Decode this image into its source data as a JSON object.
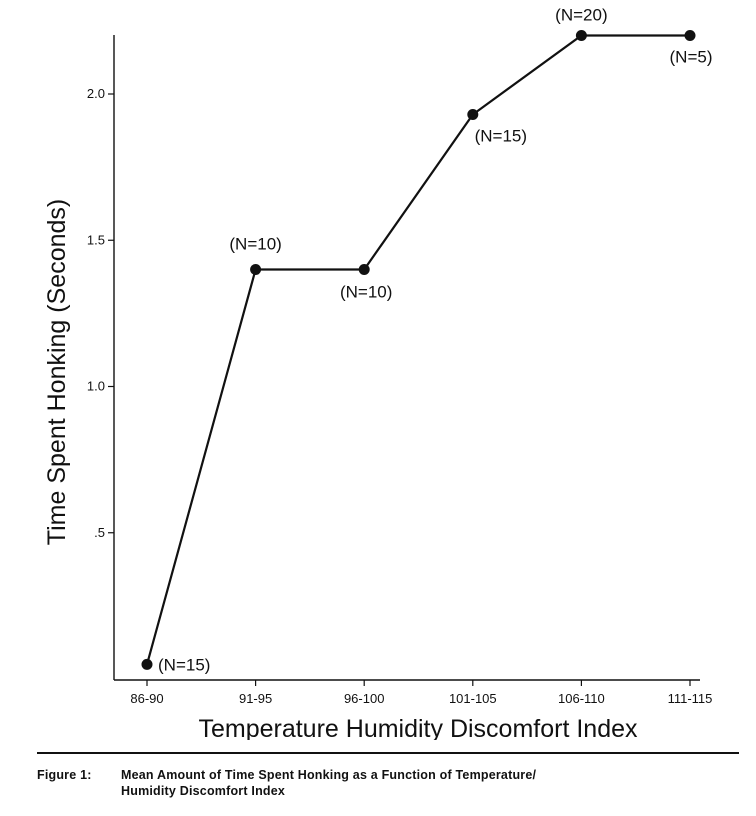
{
  "chart_data": {
    "type": "line",
    "categories": [
      "86-90",
      "91-95",
      "96-100",
      "101-105",
      "106-110",
      "111-115"
    ],
    "series": [
      {
        "values": [
          0.05,
          1.4,
          1.4,
          1.93,
          2.2,
          2.2
        ]
      }
    ],
    "point_labels": [
      "(N=15)",
      "(N=10)",
      "(N=10)",
      "(N=15)",
      "(N=20)",
      "(N=5)"
    ],
    "xlabel": "Temperature Humidity Discomfort Index",
    "ylabel": "Time Spent Honking (Seconds)",
    "yticks": [
      {
        "value": 0.5,
        "label": ".5"
      },
      {
        "value": 1.0,
        "label": "1.0"
      },
      {
        "value": 1.5,
        "label": "1.5"
      },
      {
        "value": 2.0,
        "label": "2.0"
      }
    ],
    "ylim": [
      0,
      2.2
    ],
    "grid": false,
    "line_color": "#111111"
  },
  "caption": {
    "label": "Figure 1:",
    "line1": "Mean Amount of Time Spent Honking as a Function of Temperature/",
    "line2": "Humidity Discomfort Index"
  }
}
